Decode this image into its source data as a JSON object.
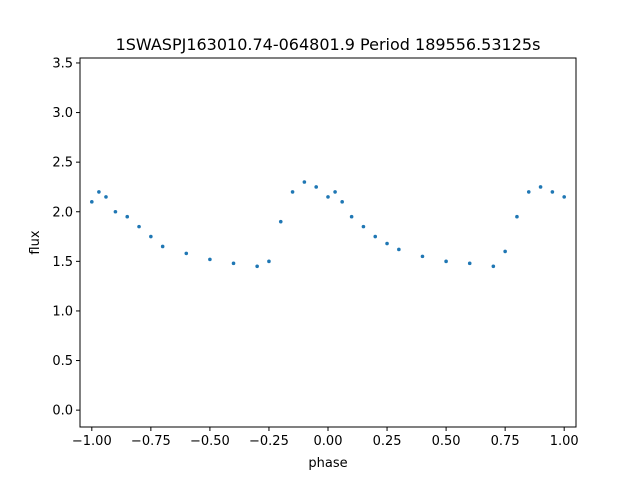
{
  "chart_data": {
    "type": "scatter",
    "title": "1SWASPJ163010.74-064801.9 Period 189556.53125s",
    "xlabel": "phase",
    "ylabel": "flux",
    "xlim": [
      -1.05,
      1.05
    ],
    "ylim": [
      -0.17,
      3.55
    ],
    "xticks": [
      -1.0,
      -0.75,
      -0.5,
      -0.25,
      0.0,
      0.25,
      0.5,
      0.75,
      1.0
    ],
    "xtick_labels": [
      "−1.00",
      "−0.75",
      "−0.50",
      "−0.25",
      "0.00",
      "0.25",
      "0.50",
      "0.75",
      "1.00"
    ],
    "yticks": [
      0.0,
      0.5,
      1.0,
      1.5,
      2.0,
      2.5,
      3.0,
      3.5
    ],
    "ytick_labels": [
      "0.0",
      "0.5",
      "1.0",
      "1.5",
      "2.0",
      "2.5",
      "3.0",
      "3.5"
    ],
    "grid": false,
    "marker_color": "#1f77b4",
    "series": [
      {
        "x": [
          -1.0,
          -0.97,
          -0.94,
          -0.9,
          -0.85,
          -0.8,
          -0.75,
          -0.7,
          -0.6,
          -0.5,
          -0.4,
          -0.3,
          -0.25,
          -0.2,
          -0.15,
          -0.1,
          -0.05,
          0.0,
          0.03,
          0.06,
          0.1,
          0.15,
          0.2,
          0.25,
          0.3,
          0.4,
          0.5,
          0.6,
          0.7,
          0.75,
          0.8,
          0.85,
          0.9,
          0.95,
          1.0
        ],
        "y": [
          2.1,
          2.2,
          2.15,
          2.0,
          1.95,
          1.85,
          1.75,
          1.65,
          1.58,
          1.52,
          1.48,
          1.45,
          1.5,
          1.9,
          2.2,
          2.3,
          2.25,
          2.15,
          2.2,
          2.1,
          1.95,
          1.85,
          1.75,
          1.68,
          1.62,
          1.55,
          1.5,
          1.48,
          1.45,
          1.6,
          1.95,
          2.2,
          2.25,
          2.2,
          2.15
        ]
      }
    ]
  }
}
